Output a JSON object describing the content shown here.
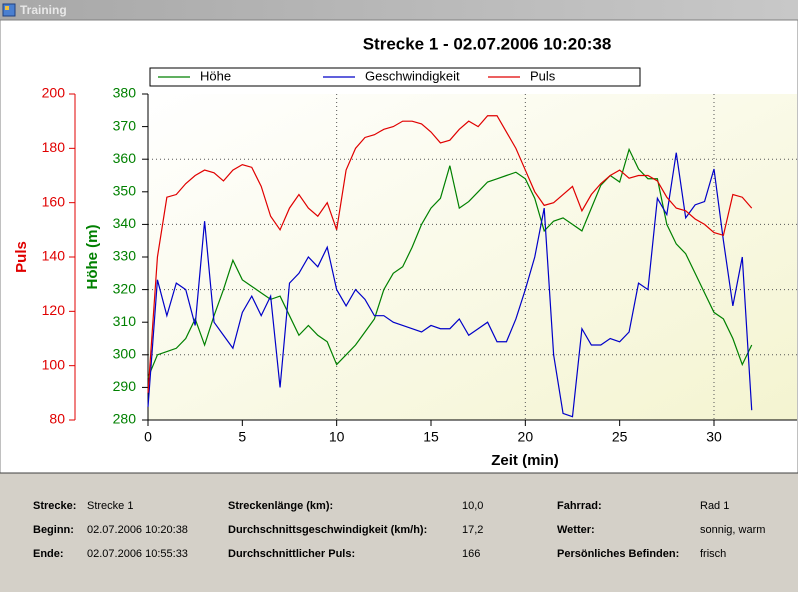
{
  "window": {
    "title": "Training"
  },
  "chart_data": {
    "type": "line",
    "title": "Strecke 1 - 02.07.2006 10:20:38",
    "xlabel": "Zeit (min)",
    "ylabel": "Höhe (m)",
    "y2label": "Puls",
    "x": [
      0,
      0.5,
      1,
      1.5,
      2,
      2.5,
      3,
      3.5,
      4,
      4.5,
      5,
      5.5,
      6,
      6.5,
      7,
      7.5,
      8,
      8.5,
      9,
      9.5,
      10,
      10.5,
      11,
      11.5,
      12,
      12.5,
      13,
      13.5,
      14,
      14.5,
      15,
      15.5,
      16,
      16.5,
      17,
      17.5,
      18,
      18.5,
      19,
      19.5,
      20,
      20.5,
      21,
      21.5,
      22,
      22.5,
      23,
      23.5,
      24,
      24.5,
      25,
      25.5,
      26,
      26.5,
      27,
      27.5,
      28,
      28.5,
      29,
      29.5,
      30,
      30.5,
      31,
      31.5,
      32
    ],
    "series": [
      {
        "name": "Höhe",
        "color": "#008000",
        "axis": "y",
        "values": [
          293,
          300,
          301,
          302,
          305,
          311,
          303,
          312,
          320,
          329,
          323,
          321,
          319,
          317,
          318,
          312,
          306,
          309,
          306,
          304,
          297,
          300,
          303,
          307,
          311,
          320,
          325,
          327,
          333,
          340,
          345,
          348,
          358,
          345,
          347,
          350,
          353,
          354,
          355,
          356,
          354,
          348,
          338,
          341,
          342,
          340,
          338,
          345,
          352,
          355,
          353,
          363,
          357,
          354,
          354,
          340,
          334,
          331,
          325,
          319,
          313,
          311,
          305,
          297,
          303
        ]
      },
      {
        "name": "Geschwindigkeit",
        "color": "#0000c8",
        "axis": "y",
        "values": [
          284,
          323,
          312,
          322,
          320,
          309,
          341,
          310,
          306,
          302,
          313,
          318,
          312,
          318,
          290,
          322,
          325,
          330,
          327,
          333,
          320,
          315,
          320,
          317,
          312,
          312,
          310,
          309,
          308,
          307,
          309,
          308,
          308,
          311,
          306,
          308,
          310,
          304,
          304,
          311,
          320,
          330,
          345,
          300,
          282,
          281,
          308,
          303,
          303,
          305,
          304,
          307,
          322,
          320,
          348,
          343,
          362,
          342,
          346,
          347,
          357,
          335,
          315,
          330,
          283
        ]
      },
      {
        "name": "Puls",
        "color": "#e00000",
        "axis": "y2",
        "values": [
          90,
          140,
          162,
          163,
          167,
          170,
          172,
          171,
          168,
          172,
          174,
          173,
          166,
          155,
          150,
          158,
          163,
          158,
          155,
          160,
          150,
          172,
          180,
          184,
          185,
          187,
          188,
          190,
          190,
          189,
          186,
          182,
          183,
          187,
          190,
          188,
          192,
          192,
          186,
          180,
          172,
          164,
          159,
          160,
          163,
          166,
          157,
          163,
          167,
          170,
          172,
          169,
          170,
          170,
          168,
          162,
          158,
          157,
          154,
          152,
          149,
          148,
          163,
          162,
          158
        ]
      }
    ],
    "xlim": [
      0,
      34.4
    ],
    "xticks": [
      0,
      5,
      10,
      15,
      20,
      25,
      30
    ],
    "ylim": [
      280,
      380
    ],
    "yticks": [
      280,
      290,
      300,
      310,
      320,
      330,
      340,
      350,
      360,
      370,
      380
    ],
    "y2lim": [
      80,
      200
    ],
    "y2ticks": [
      80,
      100,
      120,
      140,
      160,
      180,
      200
    ],
    "grid": true
  },
  "info": [
    {
      "label": "Strecke:",
      "value": "Strecke 1"
    },
    {
      "label": "Beginn:",
      "value": "02.07.2006 10:20:38"
    },
    {
      "label": "Ende:",
      "value": "02.07.2006 10:55:33"
    },
    {
      "label": "Streckenlänge (km):",
      "value": "10,0"
    },
    {
      "label": "Durchschnittsgeschwindigkeit (km/h):",
      "value": "17,2"
    },
    {
      "label": "Durchschnittlicher Puls:",
      "value": "166"
    },
    {
      "label": "Fahrrad:",
      "value": "Rad 1"
    },
    {
      "label": "Wetter:",
      "value": "sonnig, warm"
    },
    {
      "label": "Persönliches Befinden:",
      "value": "frisch"
    }
  ]
}
